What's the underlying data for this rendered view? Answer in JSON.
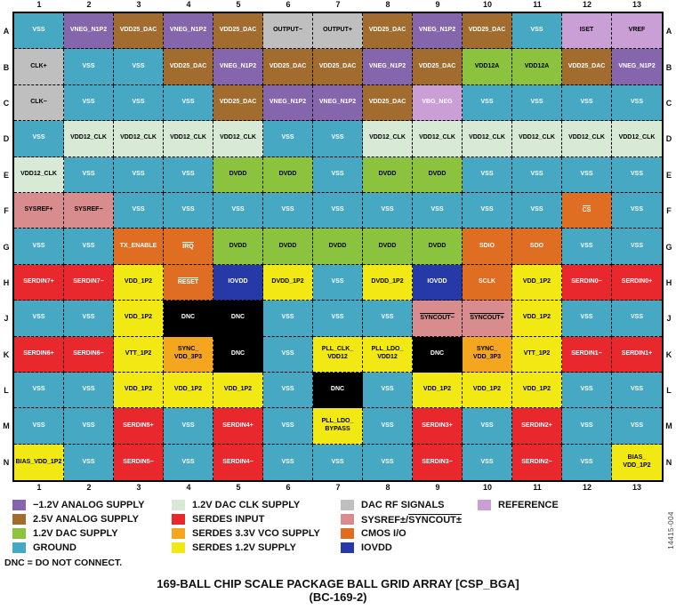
{
  "title": {
    "line1": "169-BALL CHIP SCALE PACKAGE BALL GRID ARRAY [CSP_BGA]",
    "line2": "(BC-169-2)"
  },
  "note": "DNC = DO NOT CONNECT.",
  "watermark": "14415-004",
  "diagram": {
    "columns": [
      "1",
      "2",
      "3",
      "4",
      "5",
      "6",
      "7",
      "8",
      "9",
      "10",
      "11",
      "12",
      "13"
    ],
    "colors": {
      "gnd": "#47A8C4",
      "neg": "#8566AD",
      "a25": "#A26C2F",
      "dac12": "#8BC23E",
      "clk12": "#D8EAD6",
      "sin": "#E9282E",
      "vco33": "#F4A61F",
      "s12": "#F2E813",
      "rf": "#BFBFBF",
      "sysref": "#D98C8D",
      "cmos": "#DF6E22",
      "iovdd": "#2739A7",
      "ref": "#C99FD5",
      "dnc": "#000000"
    },
    "text_colors": {
      "gnd": "#ffffff",
      "neg": "#ffffff",
      "a25": "#ffffff",
      "dac12": "#000000",
      "clk12": "#000000",
      "sin": "#ffffff",
      "vco33": "#000000",
      "s12": "#000000",
      "rf": "#000000",
      "sysref": "#000000",
      "cmos": "#ffffff",
      "iovdd": "#ffffff",
      "ref": "#000000",
      "dnc": "#ffffff"
    },
    "rows": [
      {
        "letter": "A",
        "cells": [
          {
            "l": "VSS",
            "t": "gnd"
          },
          {
            "l": "VNEG_N1P2",
            "t": "neg"
          },
          {
            "l": "VDD25_DAC",
            "t": "a25"
          },
          {
            "l": "VNEG_N1P2",
            "t": "neg"
          },
          {
            "l": "VDD25_DAC",
            "t": "a25"
          },
          {
            "l": "OUTPUT−",
            "t": "rf"
          },
          {
            "l": "OUTPUT+",
            "t": "rf"
          },
          {
            "l": "VDD25_DAC",
            "t": "a25"
          },
          {
            "l": "VNEG_N1P2",
            "t": "neg"
          },
          {
            "l": "VDD25_DAC",
            "t": "a25"
          },
          {
            "l": "VSS",
            "t": "gnd"
          },
          {
            "l": "ISET",
            "t": "ref"
          },
          {
            "l": "VREF",
            "t": "ref"
          }
        ]
      },
      {
        "letter": "B",
        "cells": [
          {
            "l": "CLK+",
            "t": "rf"
          },
          {
            "l": "VSS",
            "t": "gnd"
          },
          {
            "l": "VSS",
            "t": "gnd"
          },
          {
            "l": "VDD25_DAC",
            "t": "a25"
          },
          {
            "l": "VNEG_N1P2",
            "t": "neg"
          },
          {
            "l": "VDD25_DAC",
            "t": "a25"
          },
          {
            "l": "VDD25_DAC",
            "t": "a25"
          },
          {
            "l": "VNEG_N1P2",
            "t": "neg"
          },
          {
            "l": "VDD25_DAC",
            "t": "a25"
          },
          {
            "l": "VDD12A",
            "t": "dac12"
          },
          {
            "l": "VDD12A",
            "t": "dac12"
          },
          {
            "l": "VDD25_DAC",
            "t": "a25"
          },
          {
            "l": "VNEG_N1P2",
            "t": "neg"
          }
        ]
      },
      {
        "letter": "C",
        "cells": [
          {
            "l": "CLK−",
            "t": "rf"
          },
          {
            "l": "VSS",
            "t": "gnd"
          },
          {
            "l": "VSS",
            "t": "gnd"
          },
          {
            "l": "VSS",
            "t": "gnd"
          },
          {
            "l": "VDD25_DAC",
            "t": "a25"
          },
          {
            "l": "VNEG_N1P2",
            "t": "neg"
          },
          {
            "l": "VNEG_N1P2",
            "t": "neg"
          },
          {
            "l": "VDD25_DAC",
            "t": "a25"
          },
          {
            "l": "VBG_NEG",
            "t": "ref",
            "tc": "#ffffff"
          },
          {
            "l": "VSS",
            "t": "gnd"
          },
          {
            "l": "VSS",
            "t": "gnd"
          },
          {
            "l": "VSS",
            "t": "gnd"
          },
          {
            "l": "VSS",
            "t": "gnd"
          }
        ]
      },
      {
        "letter": "D",
        "cells": [
          {
            "l": "VSS",
            "t": "gnd"
          },
          {
            "l": "VDD12_CLK",
            "t": "clk12"
          },
          {
            "l": "VDD12_CLK",
            "t": "clk12"
          },
          {
            "l": "VDD12_CLK",
            "t": "clk12"
          },
          {
            "l": "VDD12_CLK",
            "t": "clk12"
          },
          {
            "l": "VSS",
            "t": "gnd"
          },
          {
            "l": "VSS",
            "t": "gnd"
          },
          {
            "l": "VDD12_CLK",
            "t": "clk12"
          },
          {
            "l": "VDD12_CLK",
            "t": "clk12"
          },
          {
            "l": "VDD12_CLK",
            "t": "clk12"
          },
          {
            "l": "VDD12_CLK",
            "t": "clk12"
          },
          {
            "l": "VDD12_CLK",
            "t": "clk12"
          },
          {
            "l": "VDD12_CLK",
            "t": "clk12"
          }
        ]
      },
      {
        "letter": "E",
        "cells": [
          {
            "l": "VDD12_CLK",
            "t": "clk12"
          },
          {
            "l": "VSS",
            "t": "gnd"
          },
          {
            "l": "VSS",
            "t": "gnd"
          },
          {
            "l": "VSS",
            "t": "gnd"
          },
          {
            "l": "DVDD",
            "t": "dac12"
          },
          {
            "l": "DVDD",
            "t": "dac12"
          },
          {
            "l": "VSS",
            "t": "gnd"
          },
          {
            "l": "DVDD",
            "t": "dac12"
          },
          {
            "l": "DVDD",
            "t": "dac12"
          },
          {
            "l": "VSS",
            "t": "gnd"
          },
          {
            "l": "VSS",
            "t": "gnd"
          },
          {
            "l": "VSS",
            "t": "gnd"
          },
          {
            "l": "VSS",
            "t": "gnd"
          }
        ]
      },
      {
        "letter": "F",
        "cells": [
          {
            "l": "SYSREF+",
            "t": "sysref"
          },
          {
            "l": "SYSREF−",
            "t": "sysref"
          },
          {
            "l": "VSS",
            "t": "gnd"
          },
          {
            "l": "VSS",
            "t": "gnd"
          },
          {
            "l": "VSS",
            "t": "gnd"
          },
          {
            "l": "VSS",
            "t": "gnd"
          },
          {
            "l": "VSS",
            "t": "gnd"
          },
          {
            "l": "VSS",
            "t": "gnd"
          },
          {
            "l": "VSS",
            "t": "gnd"
          },
          {
            "l": "VSS",
            "t": "gnd"
          },
          {
            "l": "VSS",
            "t": "gnd"
          },
          {
            "l": "CS",
            "t": "cmos",
            "ov": true
          },
          {
            "l": "VSS",
            "t": "gnd"
          }
        ]
      },
      {
        "letter": "G",
        "cells": [
          {
            "l": "VSS",
            "t": "gnd"
          },
          {
            "l": "VSS",
            "t": "gnd"
          },
          {
            "l": "TX_ENABLE",
            "t": "cmos"
          },
          {
            "l": "IRQ",
            "t": "cmos",
            "ov": true
          },
          {
            "l": "DVDD",
            "t": "dac12"
          },
          {
            "l": "DVDD",
            "t": "dac12"
          },
          {
            "l": "DVDD",
            "t": "dac12"
          },
          {
            "l": "DVDD",
            "t": "dac12"
          },
          {
            "l": "DVDD",
            "t": "dac12"
          },
          {
            "l": "SDIO",
            "t": "cmos"
          },
          {
            "l": "SDO",
            "t": "cmos"
          },
          {
            "l": "VSS",
            "t": "gnd"
          },
          {
            "l": "VSS",
            "t": "gnd"
          }
        ]
      },
      {
        "letter": "H",
        "cells": [
          {
            "l": "SERDIN7+",
            "t": "sin"
          },
          {
            "l": "SERDIN7−",
            "t": "sin"
          },
          {
            "l": "VDD_1P2",
            "t": "s12"
          },
          {
            "l": "RESET",
            "t": "cmos",
            "ov": true
          },
          {
            "l": "IOVDD",
            "t": "iovdd"
          },
          {
            "l": "DVDD_1P2",
            "t": "s12"
          },
          {
            "l": "VSS",
            "t": "gnd"
          },
          {
            "l": "DVDD_1P2",
            "t": "s12"
          },
          {
            "l": "IOVDD",
            "t": "iovdd"
          },
          {
            "l": "SCLK",
            "t": "cmos"
          },
          {
            "l": "VDD_1P2",
            "t": "s12"
          },
          {
            "l": "SERDIN0−",
            "t": "sin"
          },
          {
            "l": "SERDIN0+",
            "t": "sin"
          }
        ]
      },
      {
        "letter": "J",
        "cells": [
          {
            "l": "VSS",
            "t": "gnd"
          },
          {
            "l": "VSS",
            "t": "gnd"
          },
          {
            "l": "VDD_1P2",
            "t": "s12"
          },
          {
            "l": "DNC",
            "t": "dnc"
          },
          {
            "l": "DNC",
            "t": "dnc"
          },
          {
            "l": "VSS",
            "t": "gnd"
          },
          {
            "l": "VSS",
            "t": "gnd"
          },
          {
            "l": "VSS",
            "t": "gnd"
          },
          {
            "l": "SYNCOUT−",
            "t": "sysref",
            "ov": true
          },
          {
            "l": "SYNCOUT+",
            "t": "sysref",
            "ov": true
          },
          {
            "l": "VDD_1P2",
            "t": "s12"
          },
          {
            "l": "VSS",
            "t": "gnd"
          },
          {
            "l": "VSS",
            "t": "gnd"
          }
        ]
      },
      {
        "letter": "K",
        "cells": [
          {
            "l": "SERDIN6+",
            "t": "sin"
          },
          {
            "l": "SERDIN6−",
            "t": "sin"
          },
          {
            "l": "VTT_1P2",
            "t": "s12"
          },
          {
            "l": "SYNC_\nVDD_3P3",
            "t": "vco33"
          },
          {
            "l": "DNC",
            "t": "dnc"
          },
          {
            "l": "VSS",
            "t": "gnd"
          },
          {
            "l": "PLL_CLK_\nVDD12",
            "t": "s12"
          },
          {
            "l": "PLL_LDO_\nVDD12",
            "t": "s12"
          },
          {
            "l": "DNC",
            "t": "dnc"
          },
          {
            "l": "SYNC_\nVDD_3P3",
            "t": "vco33"
          },
          {
            "l": "VTT_1P2",
            "t": "s12"
          },
          {
            "l": "SERDIN1−",
            "t": "sin"
          },
          {
            "l": "SERDIN1+",
            "t": "sin"
          }
        ]
      },
      {
        "letter": "L",
        "cells": [
          {
            "l": "VSS",
            "t": "gnd"
          },
          {
            "l": "VSS",
            "t": "gnd"
          },
          {
            "l": "VDD_1P2",
            "t": "s12"
          },
          {
            "l": "VDD_1P2",
            "t": "s12"
          },
          {
            "l": "VDD_1P2",
            "t": "s12"
          },
          {
            "l": "VSS",
            "t": "gnd"
          },
          {
            "l": "DNC",
            "t": "dnc"
          },
          {
            "l": "VSS",
            "t": "gnd"
          },
          {
            "l": "VDD_1P2",
            "t": "s12"
          },
          {
            "l": "VDD_1P2",
            "t": "s12"
          },
          {
            "l": "VDD_1P2",
            "t": "s12"
          },
          {
            "l": "VSS",
            "t": "gnd"
          },
          {
            "l": "VSS",
            "t": "gnd"
          }
        ]
      },
      {
        "letter": "M",
        "cells": [
          {
            "l": "VSS",
            "t": "gnd"
          },
          {
            "l": "VSS",
            "t": "gnd"
          },
          {
            "l": "SERDIN5+",
            "t": "sin"
          },
          {
            "l": "VSS",
            "t": "gnd"
          },
          {
            "l": "SERDIN4+",
            "t": "sin"
          },
          {
            "l": "VSS",
            "t": "gnd"
          },
          {
            "l": "PLL_LDO_\nBYPASS",
            "t": "s12"
          },
          {
            "l": "VSS",
            "t": "gnd"
          },
          {
            "l": "SERDIN3+",
            "t": "sin"
          },
          {
            "l": "VSS",
            "t": "gnd"
          },
          {
            "l": "SERDIN2+",
            "t": "sin"
          },
          {
            "l": "VSS",
            "t": "gnd"
          },
          {
            "l": "VSS",
            "t": "gnd"
          }
        ]
      },
      {
        "letter": "N",
        "cells": [
          {
            "l": "BIAS_VDD_1P2",
            "t": "s12"
          },
          {
            "l": "VSS",
            "t": "gnd"
          },
          {
            "l": "SERDIN5−",
            "t": "sin"
          },
          {
            "l": "VSS",
            "t": "gnd"
          },
          {
            "l": "SERDIN4−",
            "t": "sin"
          },
          {
            "l": "VSS",
            "t": "gnd"
          },
          {
            "l": "VSS",
            "t": "gnd"
          },
          {
            "l": "VSS",
            "t": "gnd"
          },
          {
            "l": "SERDIN3−",
            "t": "sin"
          },
          {
            "l": "VSS",
            "t": "gnd"
          },
          {
            "l": "SERDIN2−",
            "t": "sin"
          },
          {
            "l": "VSS",
            "t": "gnd"
          },
          {
            "l": "BIAS_\nVDD_1P2",
            "t": "s12"
          }
        ]
      }
    ]
  },
  "legend": {
    "columns": [
      [
        {
          "color": "neg",
          "label": "−1.2V ANALOG SUPPLY"
        },
        {
          "color": "a25",
          "label": "2.5V ANALOG SUPPLY"
        },
        {
          "color": "dac12",
          "label": "1.2V DAC SUPPLY"
        },
        {
          "color": "gnd",
          "label": "GROUND"
        }
      ],
      [
        {
          "color": "clk12",
          "label": "1.2V DAC CLK SUPPLY"
        },
        {
          "color": "sin",
          "label": "SERDES INPUT"
        },
        {
          "color": "vco33",
          "label": "SERDES 3.3V VCO SUPPLY"
        },
        {
          "color": "s12",
          "label": "SERDES 1.2V SUPPLY"
        }
      ],
      [
        {
          "color": "rf",
          "label": "DAC RF SIGNALS"
        },
        {
          "color": "sysref",
          "label": "SYSREF±/",
          "label_ov": "SYNCOUT±"
        },
        {
          "color": "cmos",
          "label": "CMOS I/O"
        },
        {
          "color": "iovdd",
          "label": "IOVDD"
        }
      ],
      [
        {
          "color": "ref",
          "label": "REFERENCE"
        }
      ]
    ]
  }
}
